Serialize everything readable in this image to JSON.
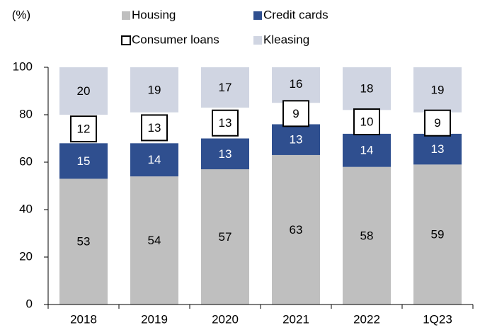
{
  "chart_data": {
    "type": "stacked_bar",
    "ylabel": "(%)",
    "categories": [
      "2018",
      "2019",
      "2020",
      "2021",
      "2022",
      "1Q23"
    ],
    "series": [
      {
        "name": "Housing",
        "color": "#bfbfbf",
        "label_color": "#000000",
        "values": [
          53,
          54,
          57,
          63,
          58,
          59
        ]
      },
      {
        "name": "Credit cards",
        "color": "#2f4f8f",
        "label_color": "#ffffff",
        "values": [
          15,
          14,
          13,
          13,
          14,
          13
        ]
      },
      {
        "name": "Consumer loans",
        "color": "#ffffff",
        "edgecolor": "#000000",
        "label_color": "#000000",
        "values": [
          12,
          13,
          13,
          9,
          10,
          9
        ]
      },
      {
        "name": "Kleasing",
        "color": "#d0d5e2",
        "label_color": "#000000",
        "values": [
          20,
          19,
          17,
          16,
          18,
          19
        ]
      }
    ],
    "ylim": [
      0,
      100
    ],
    "yticks": [
      0,
      20,
      40,
      60,
      80,
      100
    ],
    "grid": false
  }
}
